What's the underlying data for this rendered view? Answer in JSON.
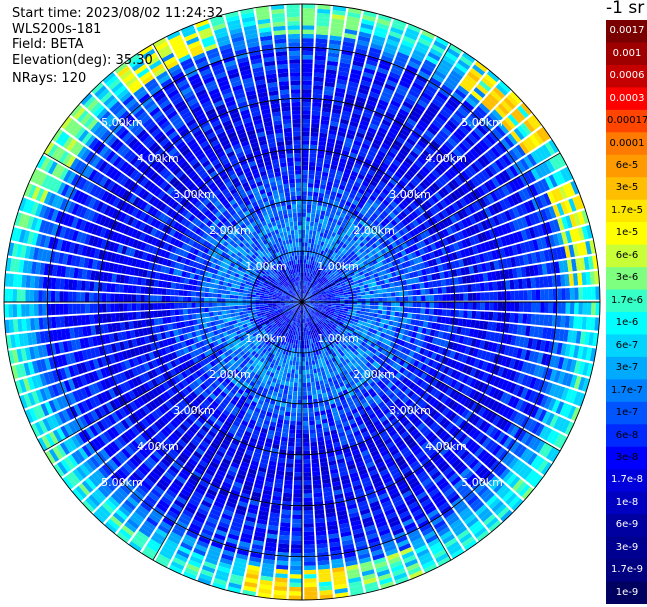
{
  "header": {
    "start_time": "Start time: 2023/08/02 11:24:32",
    "instrument": "WLS200s-181",
    "field": "Field: BETA",
    "elevation": "Elevation(deg): 35.30",
    "nrays": "NRays: 120"
  },
  "colorbar": {
    "title": "-1 sr",
    "labels": [
      "0.0017",
      "0.001",
      "0.0006",
      "0.0003",
      "0.00017",
      "0.0001",
      "6e-5",
      "3e-5",
      "1.7e-5",
      "1e-5",
      "6e-6",
      "3e-6",
      "1.7e-6",
      "1e-6",
      "6e-7",
      "3e-7",
      "1.7e-7",
      "1e-7",
      "6e-8",
      "3e-8",
      "1.7e-8",
      "1e-8",
      "6e-9",
      "3e-9",
      "1.7e-9",
      "1e-9"
    ],
    "colors": [
      "#7a0000",
      "#9e0000",
      "#c40000",
      "#ff0000",
      "#ff4500",
      "#ff7a00",
      "#ff9a00",
      "#ffbf00",
      "#ffe600",
      "#ffff00",
      "#c8ff37",
      "#7fff7f",
      "#37ffc8",
      "#00ffff",
      "#00d4ff",
      "#00aaff",
      "#0080ff",
      "#0055ff",
      "#002aff",
      "#0000ff",
      "#0000dd",
      "#0000c0",
      "#0000a0",
      "#000090",
      "#000080",
      "#000060"
    ],
    "label_text_colors": [
      "#ffffff",
      "#ffffff",
      "#ffffff",
      "#ffffff",
      "#000000",
      "#000000",
      "#000000",
      "#000000",
      "#000000",
      "#000000",
      "#000000",
      "#000000",
      "#000000",
      "#000000",
      "#000000",
      "#000000",
      "#000000",
      "#000000",
      "#000000",
      "#000000",
      "#ffffff",
      "#ffffff",
      "#ffffff",
      "#ffffff",
      "#ffffff",
      "#ffffff"
    ]
  },
  "chart_data": {
    "type": "heatmap",
    "projection": "polar",
    "field": "BETA",
    "units": "-1 sr",
    "nrays": 120,
    "elevation_deg": 35.3,
    "range_rings_km": [
      1,
      2,
      3,
      4,
      5
    ],
    "range_ring_labels": [
      "1.00km",
      "2.00km",
      "3.00km",
      "4.00km",
      "5.00km"
    ],
    "max_range_km": 5.85,
    "radial_profile": [
      {
        "range_km": 0.2,
        "value": 6e-08
      },
      {
        "range_km": 0.6,
        "value": 3e-08
      },
      {
        "range_km": 1.0,
        "value": 1e-07
      },
      {
        "range_km": 1.5,
        "value": 1.7e-07
      },
      {
        "range_km": 2.0,
        "value": 1e-07
      },
      {
        "range_km": 3.0,
        "value": 3e-08
      },
      {
        "range_km": 4.0,
        "value": 3e-08
      },
      {
        "range_km": 5.0,
        "value": 6e-08
      },
      {
        "range_km": 5.6,
        "value": 1e-06
      }
    ],
    "high_sectors_outer_ring": [
      {
        "azimuth_deg": 0,
        "value": 3e-06
      },
      {
        "azimuth_deg": 45,
        "value": 1.7e-05
      },
      {
        "azimuth_deg": 75,
        "value": 1e-05
      },
      {
        "azimuth_deg": 165,
        "value": 3e-06
      },
      {
        "azimuth_deg": 180,
        "value": 1.7e-05
      },
      {
        "azimuth_deg": 300,
        "value": 3e-06
      },
      {
        "azimuth_deg": 330,
        "value": 1e-05
      }
    ]
  }
}
